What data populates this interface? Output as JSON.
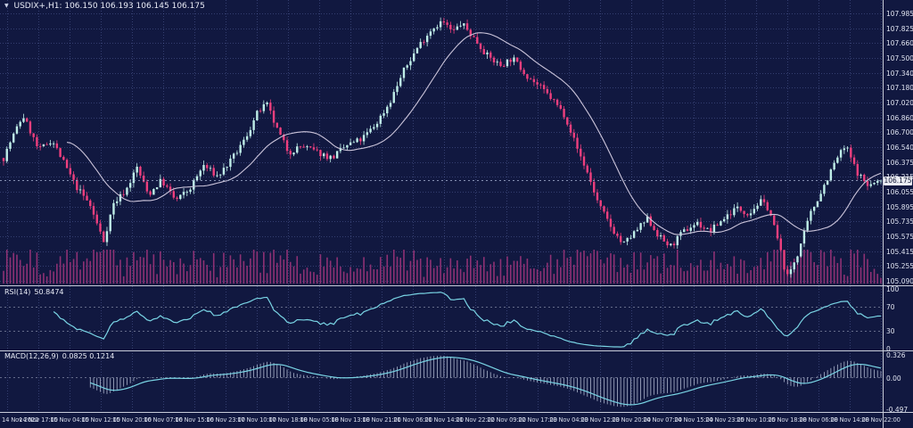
{
  "window": {
    "title_symbol": "USDIX+,H1:",
    "ohlc": "106.150 106.193 106.145 106.175",
    "marker_icon": "▼"
  },
  "panes": {
    "main": {
      "price_labels": [
        "107.985",
        "107.825",
        "107.660",
        "107.500",
        "107.340",
        "107.180",
        "107.020",
        "106.860",
        "106.700",
        "106.540",
        "106.375",
        "106.215",
        "106.055",
        "105.895",
        "105.735",
        "105.575",
        "105.415",
        "105.255",
        "105.090"
      ],
      "current_price": "106.175"
    },
    "rsi": {
      "label": "RSI(14)",
      "value": "50.8474",
      "axis_labels": [
        "100",
        "70",
        "30",
        "0"
      ],
      "axis_values": [
        100,
        70,
        30,
        0
      ],
      "level_lines": [
        70,
        30
      ]
    },
    "macd": {
      "label": "MACD(12,26,9)",
      "values": "0.0825 0.1214",
      "axis_top_label": "0.326",
      "axis_zero_label": "0.00",
      "axis_bottom_label": "-0.497"
    }
  },
  "time_axis": {
    "labels": [
      "14 Nov 2022",
      "14 Nov 17:00",
      "15 Nov 04:00",
      "15 Nov 12:00",
      "15 Nov 20:00",
      "16 Nov 07:00",
      "16 Nov 15:00",
      "16 Nov 23:00",
      "17 Nov 10:00",
      "17 Nov 18:00",
      "18 Nov 05:00",
      "18 Nov 13:00",
      "18 Nov 21:00",
      "21 Nov 06:00",
      "21 Nov 14:00",
      "21 Nov 22:00",
      "22 Nov 09:00",
      "22 Nov 17:00",
      "23 Nov 04:00",
      "23 Nov 12:00",
      "23 Nov 20:00",
      "24 Nov 07:00",
      "24 Nov 15:00",
      "24 Nov 23:00",
      "25 Nov 10:00",
      "25 Nov 18:00",
      "28 Nov 06:00",
      "28 Nov 14:00",
      "28 Nov 22:00"
    ]
  },
  "colors": {
    "background": "#111840",
    "grid": "rgba(105,120,185,0.40)",
    "level_line": "rgba(222,228,244,0.55)",
    "bull_candle": "#bfeee8",
    "bear_candle": "#ef3f7e",
    "moving_average": "#cbc4da",
    "volume": "#8e3174",
    "indicator_line": "#79d4e4",
    "macd_histogram": "rgba(213,221,240,0.80)",
    "axis_text": "#dfe3f0",
    "separator": "#c7cbd9",
    "current_price_line": "#97a1c2",
    "price_tag_bg": "#e9ebf2",
    "price_tag_text": "#0c1230"
  },
  "chart_data": {
    "type": "candlestick",
    "symbol": "USDIX+",
    "timeframe": "H1",
    "title": "USDIX+ H1 candlestick chart with MA, volume, RSI(14), MACD(12,26,9)",
    "visible_range": {
      "start": "14 Nov 2022 00:00",
      "end": "28 Nov 2022 23:00"
    },
    "ohlc_current": {
      "open": 106.15,
      "high": 106.193,
      "low": 106.145,
      "close": 106.175
    },
    "price_axis": {
      "min": 105.09,
      "max": 107.985
    },
    "candle_count": 264,
    "price_path_keypoints": [
      [
        0.0,
        106.42
      ],
      [
        0.008,
        106.6
      ],
      [
        0.022,
        106.88
      ],
      [
        0.03,
        106.72
      ],
      [
        0.04,
        106.5
      ],
      [
        0.055,
        106.62
      ],
      [
        0.068,
        106.38
      ],
      [
        0.082,
        106.12
      ],
      [
        0.098,
        105.92
      ],
      [
        0.114,
        105.52
      ],
      [
        0.125,
        105.92
      ],
      [
        0.14,
        106.08
      ],
      [
        0.152,
        106.32
      ],
      [
        0.165,
        106.02
      ],
      [
        0.18,
        106.18
      ],
      [
        0.196,
        105.96
      ],
      [
        0.212,
        106.08
      ],
      [
        0.228,
        106.34
      ],
      [
        0.244,
        106.22
      ],
      [
        0.26,
        106.4
      ],
      [
        0.275,
        106.62
      ],
      [
        0.29,
        106.92
      ],
      [
        0.3,
        107.0
      ],
      [
        0.312,
        106.72
      ],
      [
        0.325,
        106.48
      ],
      [
        0.34,
        106.55
      ],
      [
        0.358,
        106.48
      ],
      [
        0.374,
        106.42
      ],
      [
        0.392,
        106.56
      ],
      [
        0.408,
        106.62
      ],
      [
        0.424,
        106.78
      ],
      [
        0.44,
        107.02
      ],
      [
        0.456,
        107.36
      ],
      [
        0.472,
        107.62
      ],
      [
        0.488,
        107.82
      ],
      [
        0.5,
        107.9
      ],
      [
        0.512,
        107.78
      ],
      [
        0.522,
        107.88
      ],
      [
        0.536,
        107.72
      ],
      [
        0.552,
        107.52
      ],
      [
        0.566,
        107.42
      ],
      [
        0.58,
        107.5
      ],
      [
        0.596,
        107.32
      ],
      [
        0.612,
        107.18
      ],
      [
        0.626,
        107.05
      ],
      [
        0.64,
        106.88
      ],
      [
        0.654,
        106.52
      ],
      [
        0.666,
        106.25
      ],
      [
        0.678,
        105.92
      ],
      [
        0.692,
        105.68
      ],
      [
        0.706,
        105.48
      ],
      [
        0.72,
        105.62
      ],
      [
        0.734,
        105.76
      ],
      [
        0.748,
        105.56
      ],
      [
        0.76,
        105.46
      ],
      [
        0.775,
        105.62
      ],
      [
        0.79,
        105.72
      ],
      [
        0.805,
        105.62
      ],
      [
        0.82,
        105.76
      ],
      [
        0.835,
        105.88
      ],
      [
        0.85,
        105.82
      ],
      [
        0.862,
        105.95
      ],
      [
        0.872,
        105.88
      ],
      [
        0.882,
        105.55
      ],
      [
        0.893,
        105.12
      ],
      [
        0.905,
        105.38
      ],
      [
        0.92,
        105.82
      ],
      [
        0.935,
        106.12
      ],
      [
        0.95,
        106.42
      ],
      [
        0.96,
        106.55
      ],
      [
        0.972,
        106.28
      ],
      [
        0.985,
        106.12
      ],
      [
        1.0,
        106.175
      ]
    ],
    "overlays": [
      {
        "type": "moving-average",
        "period": 20
      }
    ],
    "volume": {
      "style": "histogram"
    },
    "indicators": [
      {
        "type": "RSI",
        "period": 14,
        "last_value": 50.8474,
        "levels": [
          70,
          30
        ],
        "axis_range": [
          0,
          100
        ]
      },
      {
        "type": "MACD",
        "fast": 12,
        "slow": 26,
        "signal": 9,
        "last_macd": 0.0825,
        "last_signal": 0.1214,
        "axis_range": [
          -0.497,
          0.326
        ]
      }
    ]
  }
}
